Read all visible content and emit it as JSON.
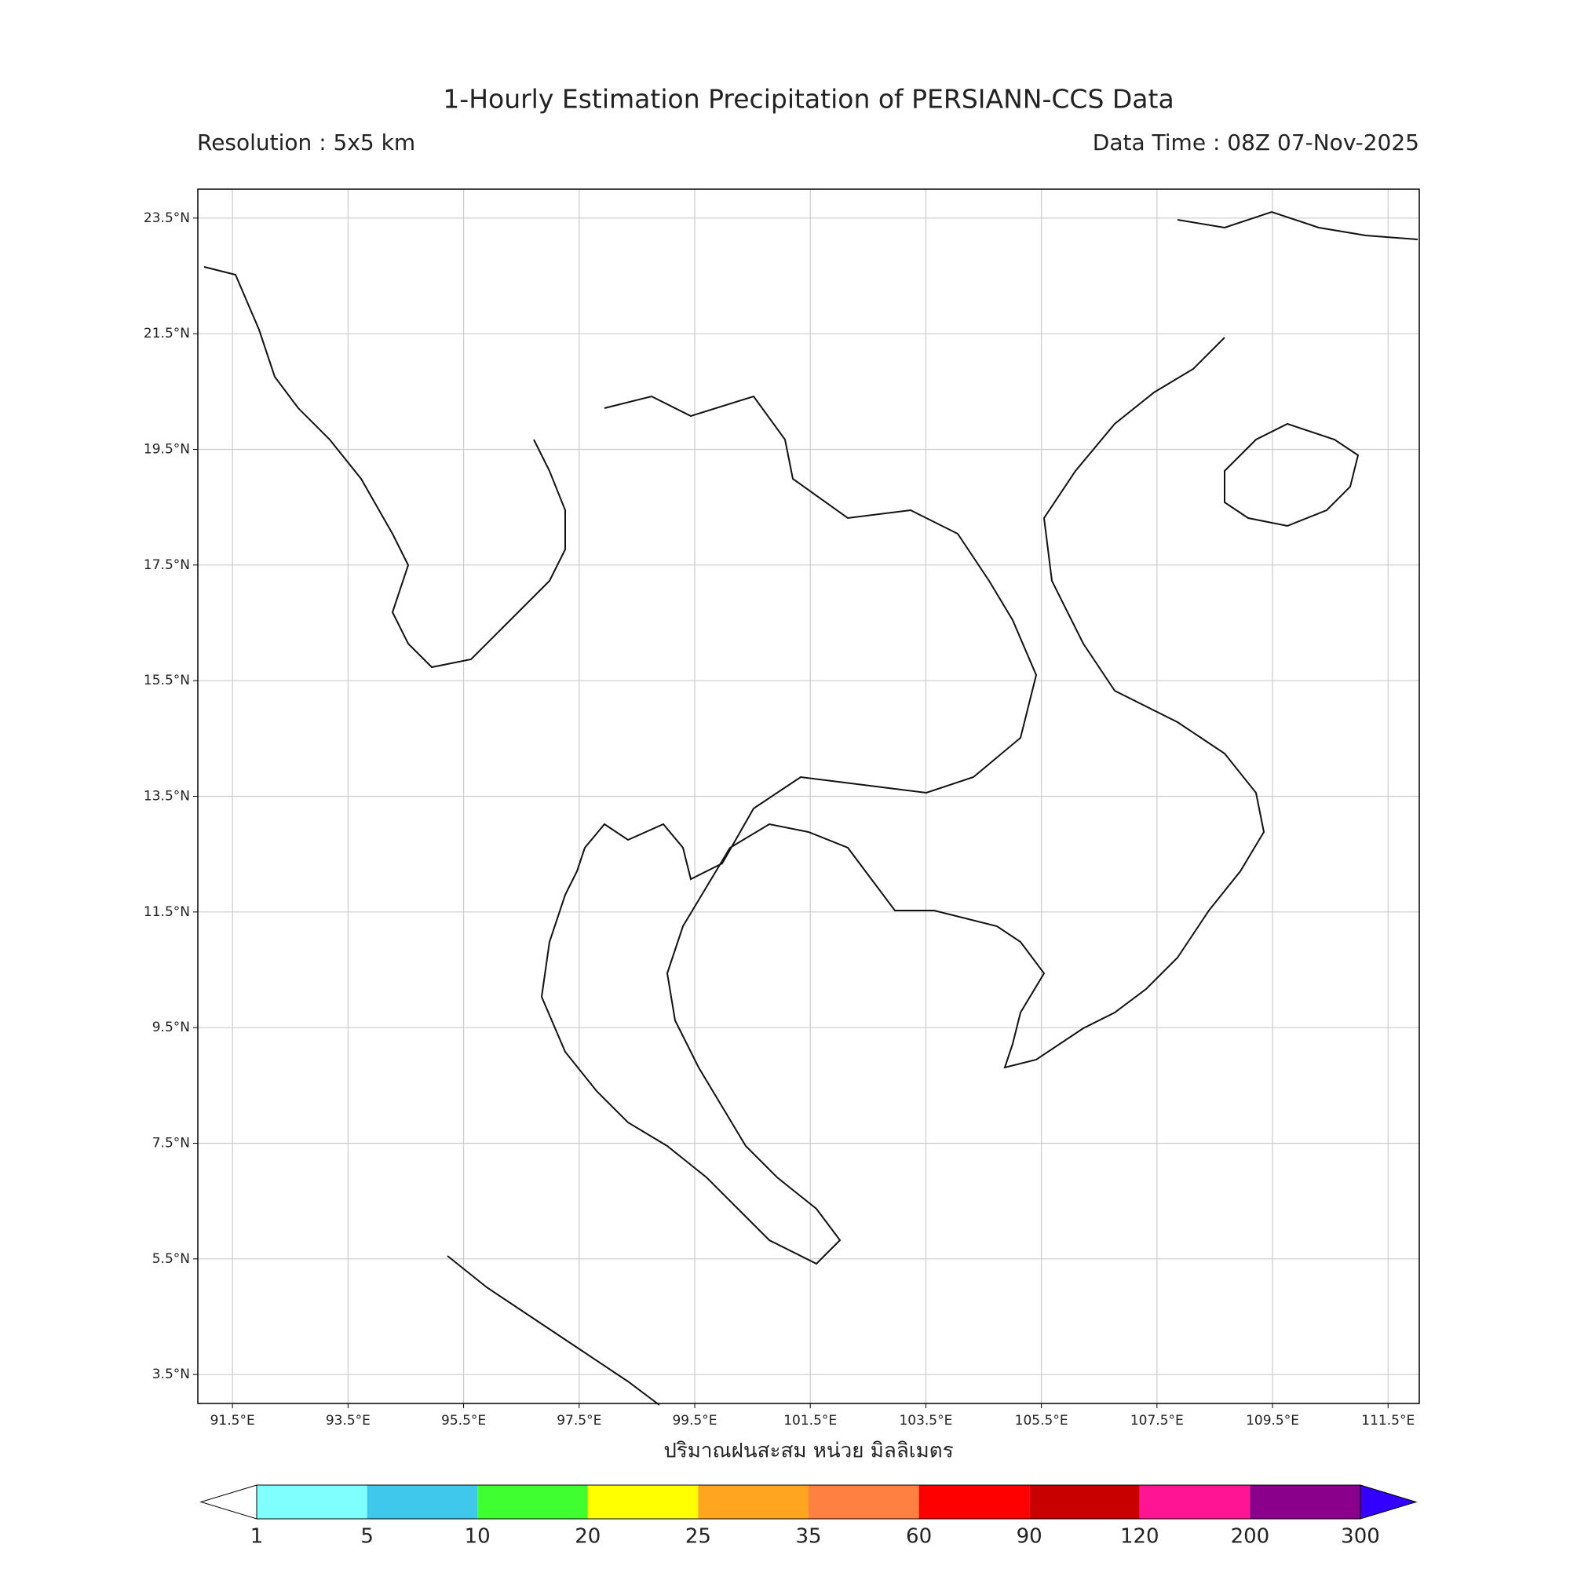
{
  "header": {
    "title": "1-Hourly Estimation Precipitation of PERSIANN-CCS Data",
    "resolution": "Resolution : 5x5 km",
    "data_time": "Data Time : 08Z 07-Nov-2025"
  },
  "map": {
    "lonlim": [
      90.9,
      112.04
    ],
    "latlim": [
      3.0,
      24.0
    ],
    "grid": true,
    "lonticks": [
      {
        "value": 91.5,
        "label": "91.5°E"
      },
      {
        "value": 93.5,
        "label": "93.5°E"
      },
      {
        "value": 95.5,
        "label": "95.5°E"
      },
      {
        "value": 97.5,
        "label": "97.5°E"
      },
      {
        "value": 99.5,
        "label": "99.5°E"
      },
      {
        "value": 101.5,
        "label": "101.5°E"
      },
      {
        "value": 103.5,
        "label": "103.5°E"
      },
      {
        "value": 105.5,
        "label": "105.5°E"
      },
      {
        "value": 107.5,
        "label": "107.5°E"
      },
      {
        "value": 109.5,
        "label": "109.5°E"
      },
      {
        "value": 111.5,
        "label": "111.5°E"
      }
    ],
    "latticks": [
      {
        "value": 3.5,
        "label": "3.5°N"
      },
      {
        "value": 5.5,
        "label": "5.5°N"
      },
      {
        "value": 7.5,
        "label": "7.5°N"
      },
      {
        "value": 9.5,
        "label": "9.5°N"
      },
      {
        "value": 11.5,
        "label": "11.5°N"
      },
      {
        "value": 13.5,
        "label": "13.5°N"
      },
      {
        "value": 15.5,
        "label": "15.5°N"
      },
      {
        "value": 17.5,
        "label": "17.5°N"
      },
      {
        "value": 19.5,
        "label": "19.5°N"
      },
      {
        "value": 21.5,
        "label": "21.5°N"
      },
      {
        "value": 23.5,
        "label": "23.5°N"
      }
    ],
    "xlabel": "ปริมาณฝนสะสม หน่วย มิลลิเมตร"
  },
  "colorbar": {
    "levels": [
      1,
      5,
      10,
      20,
      25,
      35,
      60,
      90,
      120,
      200,
      300
    ],
    "colors": [
      "#80ffff",
      "#40c8ec",
      "#40ff30",
      "#ffff00",
      "#ffa520",
      "#ff8040",
      "#ff0000",
      "#c80000",
      "#ff1493",
      "#8b008b"
    ],
    "under_color": "#ffffff",
    "over_color": "#3300ff"
  }
}
